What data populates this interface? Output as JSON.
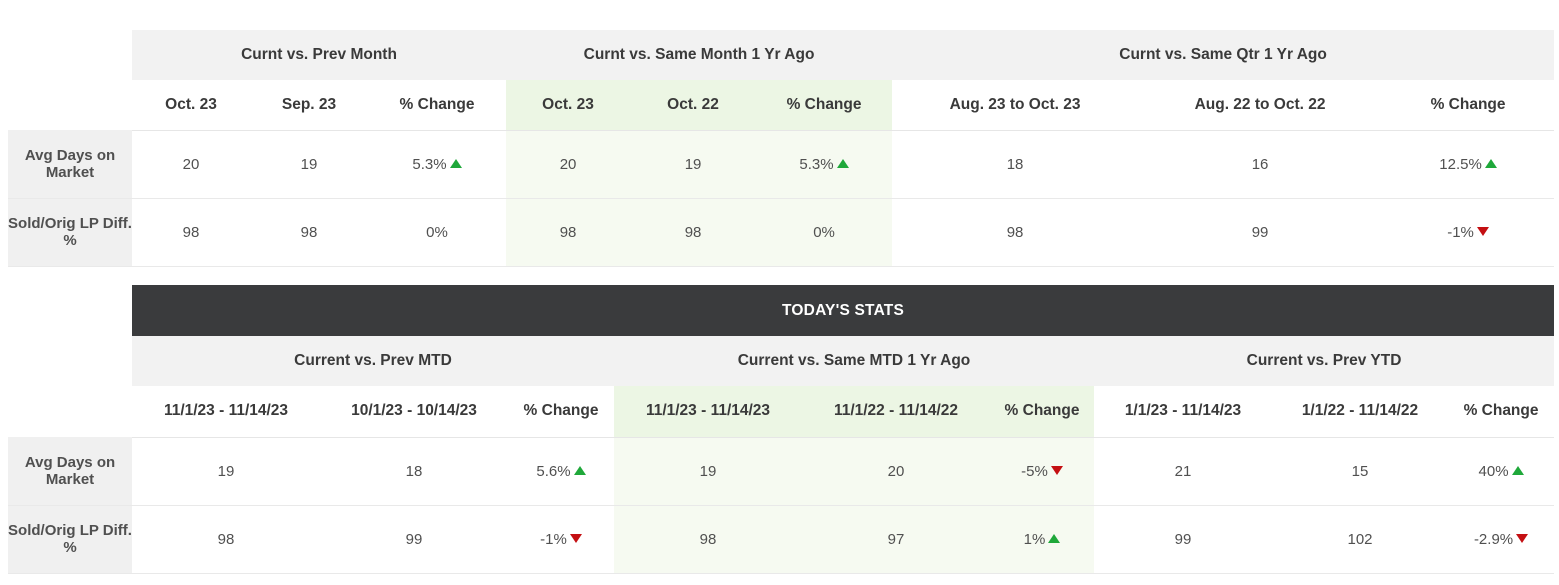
{
  "monthly": {
    "groups": [
      "Curnt vs. Prev Month",
      "Curnt vs. Same Month 1 Yr Ago",
      "Curnt vs. Same Qtr 1 Yr Ago"
    ],
    "columns": [
      "Oct. 23",
      "Sep. 23",
      "% Change",
      "Oct. 23",
      "Oct. 22",
      "% Change",
      "Aug. 23 to Oct. 23",
      "Aug. 22 to Oct. 22",
      "% Change"
    ],
    "rows": [
      {
        "label": "Avg Days on Market",
        "values": [
          "20",
          "19",
          "5.3%",
          "20",
          "19",
          "5.3%",
          "18",
          "16",
          "12.5%"
        ],
        "trend": [
          "up",
          "up",
          "up"
        ]
      },
      {
        "label": "Sold/Orig LP Diff. %",
        "values": [
          "98",
          "98",
          "0%",
          "98",
          "98",
          "0%",
          "98",
          "99",
          "-1%"
        ],
        "trend": [
          "none",
          "none",
          "down"
        ]
      }
    ]
  },
  "today": {
    "title": "TODAY'S STATS",
    "groups": [
      "Current vs. Prev MTD",
      "Current vs. Same MTD 1 Yr Ago",
      "Current vs. Prev YTD"
    ],
    "columns": [
      "11/1/23 - 11/14/23",
      "10/1/23 - 10/14/23",
      "% Change",
      "11/1/23 - 11/14/23",
      "11/1/22 - 11/14/22",
      "% Change",
      "1/1/23 - 11/14/23",
      "1/1/22 - 11/14/22",
      "% Change"
    ],
    "rows": [
      {
        "label": "Avg Days on Market",
        "values": [
          "19",
          "18",
          "5.6%",
          "19",
          "20",
          "-5%",
          "21",
          "15",
          "40%"
        ],
        "trend": [
          "up",
          "down",
          "up"
        ]
      },
      {
        "label": "Sold/Orig LP Diff. %",
        "values": [
          "98",
          "99",
          "-1%",
          "98",
          "97",
          "1%",
          "99",
          "102",
          "-2.9%"
        ],
        "trend": [
          "down",
          "up",
          "down"
        ]
      }
    ]
  },
  "colors": {
    "up_arrow": "#1fa83a",
    "down_arrow": "#c40f12",
    "highlight": "#ecf6e4",
    "dark_header": "#3a3b3d"
  }
}
